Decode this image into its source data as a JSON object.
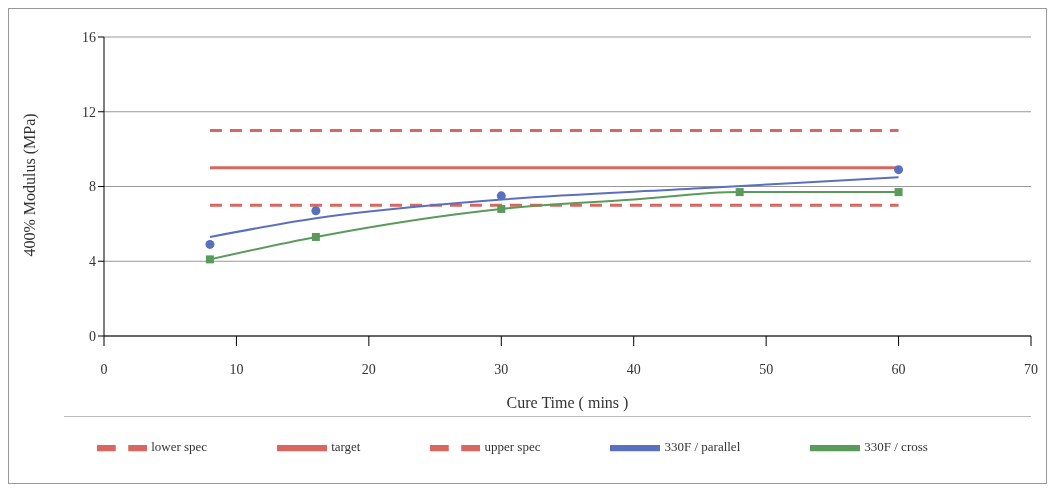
{
  "chart_data": {
    "type": "line",
    "xlabel": "Cure Time ( mins )",
    "ylabel": "400% Modulus (MPa)",
    "xlim": [
      0,
      70
    ],
    "xticks": [
      0,
      10,
      20,
      30,
      40,
      50,
      60,
      70
    ],
    "ylim": [
      0,
      16
    ],
    "yticks": [
      0,
      4,
      8,
      12,
      16
    ],
    "grid": "y",
    "legend": "bottom",
    "series": [
      {
        "name": "lower spec",
        "color": "#d9675f",
        "line_style": "dashed",
        "marker": "none",
        "x": [
          8,
          60
        ],
        "values": [
          7,
          7
        ]
      },
      {
        "name": "target",
        "color": "#d9675f",
        "line_style": "solid",
        "marker": "none",
        "x": [
          8,
          60
        ],
        "values": [
          9,
          9
        ]
      },
      {
        "name": "upper spec",
        "color": "#d9675f",
        "line_style": "dashed",
        "marker": "none",
        "x": [
          8,
          60
        ],
        "values": [
          11,
          11
        ]
      },
      {
        "name": "330F / parallel",
        "color": "#5b6fbf",
        "line_style": "solid",
        "marker": "none",
        "x": [
          8,
          16,
          30,
          45,
          60
        ],
        "values": [
          5.3,
          6.3,
          7.3,
          7.9,
          8.5
        ]
      },
      {
        "name": "330F / cross",
        "color": "#5a9a5a",
        "line_style": "solid",
        "marker": "none",
        "x": [
          8,
          16,
          30,
          40,
          48,
          60
        ],
        "values": [
          4.1,
          5.3,
          6.8,
          7.3,
          7.7,
          7.7
        ]
      },
      {
        "type": "scatter",
        "color": "#5b6fbf",
        "marker": "circle",
        "x": [
          8,
          16,
          30,
          60
        ],
        "values": [
          4.9,
          6.7,
          7.5,
          8.9
        ]
      },
      {
        "type": "scatter",
        "color": "#5a9a5a",
        "marker": "square",
        "x": [
          8,
          16,
          30,
          48,
          60
        ],
        "values": [
          4.1,
          5.3,
          6.8,
          7.7,
          7.7
        ]
      }
    ]
  }
}
